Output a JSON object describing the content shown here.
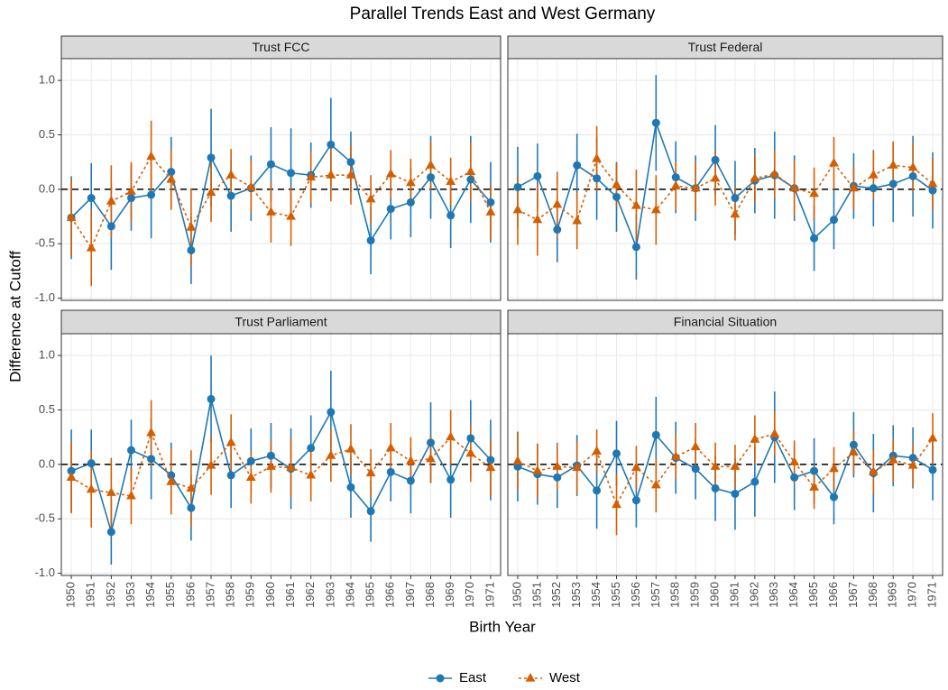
{
  "chart_data": {
    "type": "line",
    "title": "Parallel Trends East and West Germany",
    "xlabel": "Birth Year",
    "ylabel": "Difference at Cutoff",
    "categories": [
      "1950",
      "1951",
      "1952",
      "1953",
      "1954",
      "1955",
      "1956",
      "1957",
      "1958",
      "1959",
      "1960",
      "1961",
      "1962",
      "1963",
      "1964",
      "1965",
      "1966",
      "1967",
      "1968",
      "1969",
      "1970",
      "1971"
    ],
    "ylim": [
      -1.02,
      1.2
    ],
    "yticks": [
      {
        "value": -1.0,
        "label": "-1.0"
      },
      {
        "value": -0.5,
        "label": "-0.5"
      },
      {
        "value": 0.0,
        "label": "0.0"
      },
      {
        "value": 0.5,
        "label": "0.5"
      },
      {
        "value": 1.0,
        "label": "1.0"
      }
    ],
    "hline": 0,
    "grid": true,
    "legend": "bottom",
    "series": [
      {
        "name": "East",
        "color": "#1f78b4",
        "marker": "circle",
        "linestyle": "solid"
      },
      {
        "name": "West",
        "color": "#d55e00",
        "marker": "triangle",
        "linestyle": "dotted"
      }
    ],
    "facets": [
      {
        "title": "Trust FCC",
        "series": [
          {
            "values": [
              -0.26,
              -0.08,
              -0.34,
              -0.08,
              -0.05,
              0.16,
              -0.56,
              0.29,
              -0.06,
              0.01,
              0.23,
              0.15,
              0.13,
              0.41,
              0.25,
              -0.47,
              -0.18,
              -0.12,
              0.11,
              -0.24,
              0.09,
              -0.12
            ],
            "errors": [
              0.38,
              0.32,
              0.4,
              0.3,
              0.4,
              0.32,
              0.31,
              0.45,
              0.33,
              0.3,
              0.34,
              0.41,
              0.3,
              0.43,
              0.28,
              0.31,
              0.28,
              0.32,
              0.38,
              0.3,
              0.4,
              0.37
            ]
          },
          {
            "values": [
              -0.26,
              -0.54,
              -0.11,
              -0.02,
              0.3,
              0.09,
              -0.35,
              -0.03,
              0.13,
              0.02,
              -0.21,
              -0.25,
              0.11,
              0.13,
              0.13,
              -0.09,
              0.14,
              0.06,
              0.22,
              0.07,
              0.16,
              -0.21
            ],
            "errors": [
              0.35,
              0.35,
              0.33,
              0.27,
              0.33,
              0.28,
              0.36,
              0.27,
              0.24,
              0.24,
              0.28,
              0.27,
              0.24,
              0.24,
              0.27,
              0.22,
              0.22,
              0.22,
              0.22,
              0.22,
              0.27,
              0.25
            ]
          }
        ]
      },
      {
        "title": "Trust Federal",
        "series": [
          {
            "values": [
              0.02,
              0.12,
              -0.37,
              0.22,
              0.1,
              -0.07,
              -0.53,
              0.61,
              0.11,
              0.01,
              0.27,
              -0.08,
              0.08,
              0.13,
              0.01,
              -0.45,
              -0.28,
              0.03,
              0.01,
              0.05,
              0.12,
              -0.01
            ],
            "errors": [
              0.37,
              0.3,
              0.3,
              0.29,
              0.38,
              0.32,
              0.3,
              0.44,
              0.33,
              0.3,
              0.32,
              0.34,
              0.3,
              0.4,
              0.3,
              0.3,
              0.27,
              0.3,
              0.35,
              0.35,
              0.37,
              0.35
            ]
          },
          {
            "values": [
              -0.19,
              -0.28,
              -0.14,
              -0.29,
              0.28,
              0.04,
              -0.15,
              -0.19,
              0.03,
              0.01,
              0.1,
              -0.23,
              0.1,
              0.14,
              0.01,
              -0.04,
              0.24,
              0.01,
              0.13,
              0.22,
              0.2,
              0.05
            ],
            "errors": [
              0.32,
              0.33,
              0.3,
              0.26,
              0.3,
              0.2,
              0.33,
              0.32,
              0.22,
              0.24,
              0.25,
              0.24,
              0.22,
              0.22,
              0.25,
              0.24,
              0.24,
              0.2,
              0.22,
              0.22,
              0.22,
              0.24
            ]
          }
        ]
      },
      {
        "title": "Trust Parliament",
        "series": [
          {
            "values": [
              -0.06,
              0.01,
              -0.62,
              0.13,
              0.05,
              -0.1,
              -0.4,
              0.6,
              -0.1,
              0.03,
              0.08,
              -0.04,
              0.15,
              0.48,
              -0.21,
              -0.43,
              -0.07,
              -0.15,
              0.2,
              -0.14,
              0.24,
              0.04
            ],
            "errors": [
              0.38,
              0.31,
              0.3,
              0.28,
              0.37,
              0.3,
              0.3,
              0.4,
              0.3,
              0.3,
              0.3,
              0.37,
              0.3,
              0.38,
              0.28,
              0.28,
              0.27,
              0.3,
              0.37,
              0.35,
              0.35,
              0.37
            ]
          },
          {
            "values": [
              -0.12,
              -0.23,
              -0.26,
              -0.29,
              0.29,
              -0.16,
              -0.22,
              -0.01,
              0.2,
              -0.12,
              -0.02,
              -0.03,
              -0.1,
              0.08,
              0.14,
              -0.08,
              0.15,
              0.03,
              0.05,
              0.25,
              0.1,
              -0.03
            ],
            "errors": [
              0.33,
              0.35,
              0.32,
              0.26,
              0.3,
              0.3,
              0.35,
              0.27,
              0.26,
              0.24,
              0.24,
              0.27,
              0.24,
              0.24,
              0.23,
              0.22,
              0.23,
              0.22,
              0.22,
              0.25,
              0.26,
              0.26
            ]
          }
        ]
      },
      {
        "title": "Financial Situation",
        "series": [
          {
            "values": [
              -0.02,
              -0.09,
              -0.12,
              -0.01,
              -0.24,
              0.1,
              -0.33,
              0.27,
              0.06,
              -0.04,
              -0.22,
              -0.27,
              -0.16,
              0.25,
              -0.12,
              -0.06,
              -0.3,
              0.18,
              -0.08,
              0.08,
              0.06,
              -0.05
            ],
            "errors": [
              0.32,
              0.28,
              0.28,
              0.28,
              0.35,
              0.3,
              0.25,
              0.35,
              0.33,
              0.28,
              0.3,
              0.33,
              0.32,
              0.42,
              0.3,
              0.3,
              0.25,
              0.3,
              0.36,
              0.28,
              0.28,
              0.28
            ]
          },
          {
            "values": [
              0.03,
              -0.06,
              -0.02,
              -0.03,
              0.12,
              -0.37,
              -0.03,
              -0.19,
              0.07,
              0.16,
              -0.02,
              -0.02,
              0.23,
              0.28,
              0.02,
              -0.21,
              -0.04,
              0.11,
              -0.07,
              0.04,
              -0.01,
              0.24
            ],
            "errors": [
              0.27,
              0.25,
              0.22,
              0.24,
              0.2,
              0.28,
              0.2,
              0.25,
              0.2,
              0.22,
              0.22,
              0.2,
              0.22,
              0.2,
              0.2,
              0.2,
              0.2,
              0.2,
              0.2,
              0.2,
              0.2,
              0.23
            ]
          }
        ]
      }
    ]
  }
}
